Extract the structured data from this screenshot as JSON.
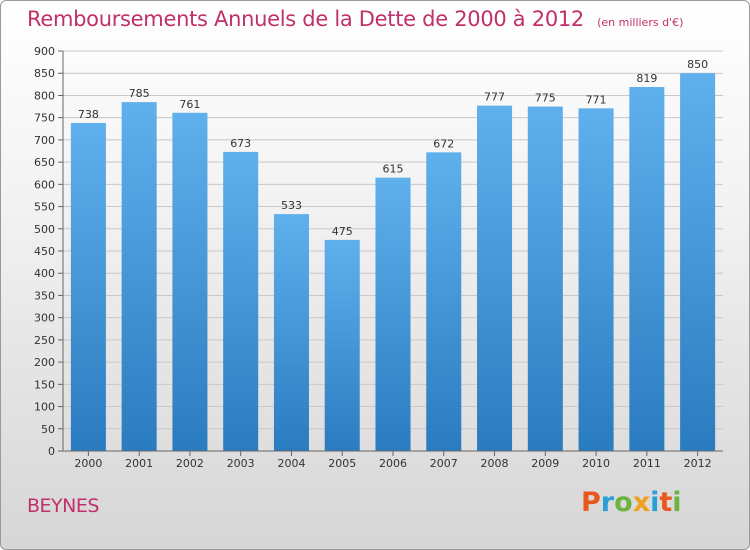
{
  "header": {
    "title": "Remboursements Annuels de la Dette de 2000 à 2012",
    "subtitle": "(en milliers d'€)"
  },
  "footer": {
    "place": "BEYNES",
    "logo_text": "Proxiti",
    "logo_colors": [
      "#e8581c",
      "#2a9fd6",
      "#6cb33f",
      "#f0a020",
      "#2a9fd6",
      "#e8581c",
      "#6cb33f"
    ]
  },
  "colors": {
    "bar": "#3a8fd0",
    "bar_light": "#5fb0ec",
    "grid": "#c8c8c8",
    "accent": "#c0306a"
  },
  "chart_data": {
    "type": "bar",
    "title": "Remboursements Annuels de la Dette de 2000 à 2012",
    "subtitle": "(en milliers d'€)",
    "categories": [
      "2000",
      "2001",
      "2002",
      "2003",
      "2004",
      "2005",
      "2006",
      "2007",
      "2008",
      "2009",
      "2010",
      "2011",
      "2012"
    ],
    "values": [
      738,
      785,
      761,
      673,
      533,
      475,
      615,
      672,
      777,
      775,
      771,
      819,
      850
    ],
    "data_labels": [
      "738",
      "785",
      "761",
      "673",
      "533",
      "475",
      "615",
      "672",
      "777",
      "775",
      "771",
      "819",
      "850"
    ],
    "ylim": [
      0,
      900
    ],
    "yticks": [
      0,
      50,
      100,
      150,
      200,
      250,
      300,
      350,
      400,
      450,
      500,
      550,
      600,
      650,
      700,
      750,
      800,
      850,
      900
    ],
    "xlabel": "",
    "ylabel": "",
    "grid": true,
    "legend": "none"
  }
}
